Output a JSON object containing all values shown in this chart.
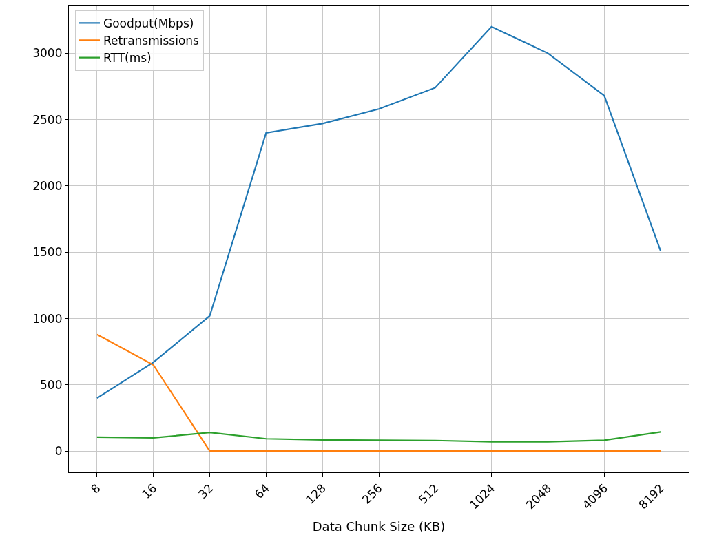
{
  "chart_data": {
    "type": "line",
    "xlabel": "Data Chunk Size (KB)",
    "log": "x",
    "x": [
      8,
      16,
      32,
      64,
      128,
      256,
      512,
      1024,
      2048,
      4096,
      8192
    ],
    "xlim": [
      5.657,
      11585
    ],
    "xticks": [
      8,
      16,
      32,
      64,
      128,
      256,
      512,
      1024,
      2048,
      4096,
      8192
    ],
    "ylim": [
      -160,
      3360
    ],
    "yticks": [
      0,
      500,
      1000,
      1500,
      2000,
      2500,
      3000
    ],
    "grid": true,
    "legend": "top left",
    "marker": "none",
    "line_style": "solid",
    "series": [
      {
        "name": "Goodput(Mbps)",
        "color": "#1f77b4",
        "values": [
          400,
          670,
          1020,
          2400,
          2470,
          2580,
          2740,
          3200,
          3000,
          2680,
          1510
        ]
      },
      {
        "name": "Retransmissions",
        "color": "#ff7f0e",
        "values": [
          880,
          650,
          0,
          0,
          0,
          0,
          0,
          0,
          0,
          0,
          0
        ]
      },
      {
        "name": "RTT(ms)",
        "color": "#2ca02c",
        "values": [
          105,
          100,
          140,
          93,
          85,
          82,
          80,
          70,
          70,
          82,
          144
        ]
      }
    ]
  }
}
